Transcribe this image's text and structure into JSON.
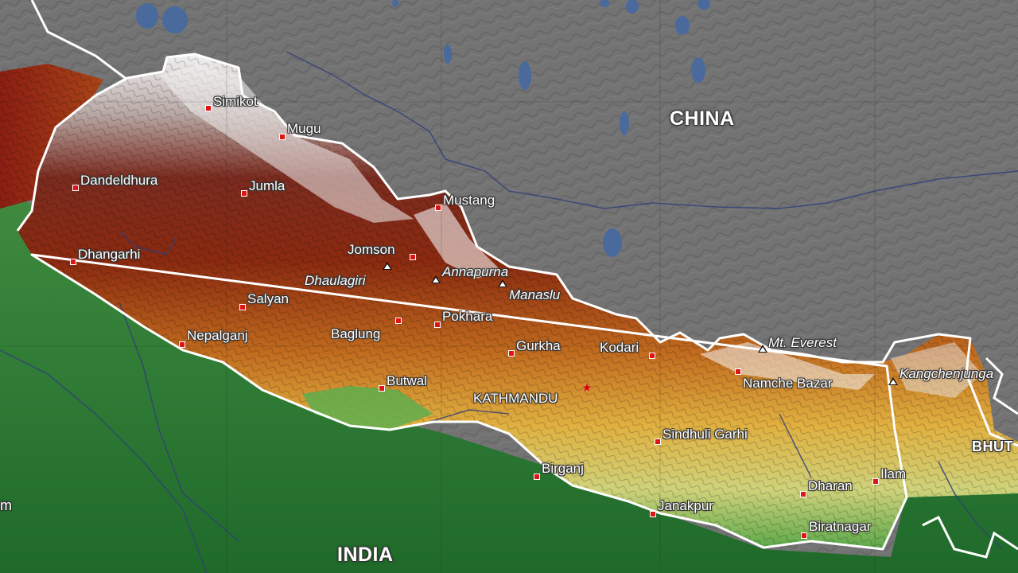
{
  "countries": [
    {
      "id": "china",
      "label": "CHINA"
    },
    {
      "id": "india",
      "label": "INDIA"
    },
    {
      "id": "bhutan",
      "label": "BHUT"
    }
  ],
  "partial_label": "m",
  "cities": [
    {
      "id": "simikot",
      "name": "Simikot"
    },
    {
      "id": "mugu",
      "name": "Mugu"
    },
    {
      "id": "dandeldhura",
      "name": "Dandeldhura"
    },
    {
      "id": "jumla",
      "name": "Jumla"
    },
    {
      "id": "mustang",
      "name": "Mustang"
    },
    {
      "id": "dhangarhi",
      "name": "Dhangarhi"
    },
    {
      "id": "jomsom",
      "name": "Jomson"
    },
    {
      "id": "salyan",
      "name": "Salyan"
    },
    {
      "id": "pokhara",
      "name": "Pokhara"
    },
    {
      "id": "baglung",
      "name": "Baglung"
    },
    {
      "id": "nepalganj",
      "name": "Nepalganj"
    },
    {
      "id": "gurkha",
      "name": "Gurkha"
    },
    {
      "id": "kodari",
      "name": "Kodari"
    },
    {
      "id": "butwal",
      "name": "Butwal"
    },
    {
      "id": "namche-bazar",
      "name": "Namche Bazar"
    },
    {
      "id": "sindhuli-garhi",
      "name": "Sindhuli Garhi"
    },
    {
      "id": "birganj",
      "name": "Birganj"
    },
    {
      "id": "dharan",
      "name": "Dharan"
    },
    {
      "id": "ilam",
      "name": "Ilam"
    },
    {
      "id": "janakpur",
      "name": "Janakpur"
    },
    {
      "id": "biratnagar",
      "name": "Biratnagar"
    }
  ],
  "capital": {
    "id": "kathmandu",
    "name": "KATHMANDU"
  },
  "peaks": [
    {
      "id": "dhaulagiri",
      "name": "Dhaulagiri"
    },
    {
      "id": "annapurna",
      "name": "Annapurna"
    },
    {
      "id": "manaslu",
      "name": "Manaslu"
    },
    {
      "id": "mt-everest",
      "name": "Mt. Everest"
    },
    {
      "id": "kangchenjunga",
      "name": "Kangchenjunga"
    }
  ],
  "colors": {
    "border": "#ffffff",
    "city_marker": "#e01414",
    "capital_marker": "#d40000",
    "water": "#4a6a9e",
    "rivers": "#2e3f7a"
  }
}
